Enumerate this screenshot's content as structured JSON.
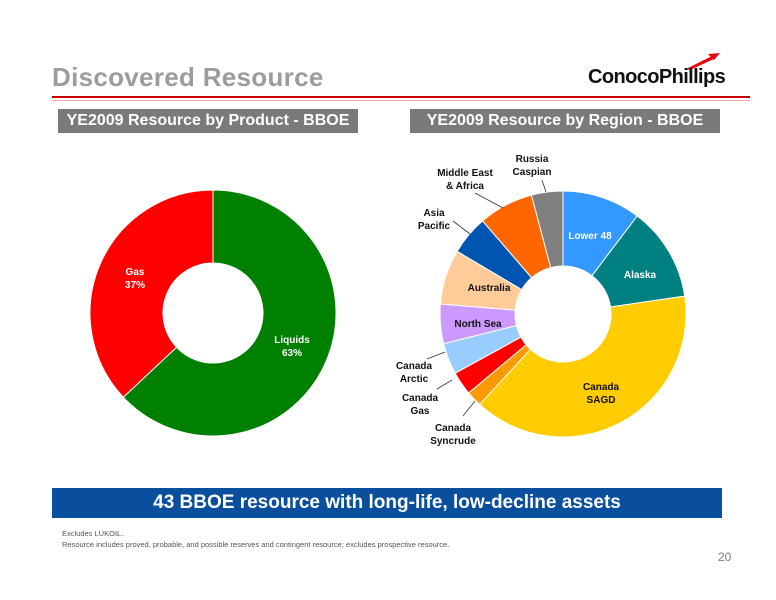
{
  "slide": {
    "title": "Discovered Resource",
    "logo_text": "ConocoPhillips",
    "banner": "43 BBOE resource with long-life, low-decline assets",
    "footnotes": [
      "Excludes LUKOIL.",
      "Resource includes proved, probable, and possible reserves and contingent resource; excludes prospective resource."
    ],
    "page_number": "20",
    "colors": {
      "title": "#9c9c9c",
      "rule": "#c80000",
      "banner": "#0a4f9e",
      "header_bar": "#7a7a7a"
    }
  },
  "chart_data": [
    {
      "type": "pie",
      "donut": true,
      "title": "YE2009 Resource by Product - BBOE",
      "slices": [
        {
          "label": "Liquids",
          "value_label": "63%",
          "value": 63,
          "color": "#008000"
        },
        {
          "label": "Gas",
          "value_label": "37%",
          "value": 37,
          "color": "#ff0000"
        }
      ],
      "legend": "none"
    },
    {
      "type": "pie",
      "donut": true,
      "title": "YE2009 Resource by Region - BBOE",
      "slices": [
        {
          "label": "Lower 48",
          "value": 10,
          "color": "#3399ff"
        },
        {
          "label": "Alaska",
          "value": 12,
          "color": "#008080"
        },
        {
          "label": "Canada SAGD",
          "value": 38,
          "color": "#ffcc00"
        },
        {
          "label": "Canada Syncrude",
          "value": 2,
          "color": "#ff9900"
        },
        {
          "label": "Canada Gas",
          "value": 3,
          "color": "#ff0000"
        },
        {
          "label": "Canada Arctic",
          "value": 4,
          "color": "#99ccff"
        },
        {
          "label": "North Sea",
          "value": 5,
          "color": "#cc99ff"
        },
        {
          "label": "Australia",
          "value": 7,
          "color": "#ffcc99"
        },
        {
          "label": "Asia Pacific",
          "value": 5,
          "color": "#0055b3"
        },
        {
          "label": "Middle East & Africa",
          "value": 7,
          "color": "#ff6600"
        },
        {
          "label": "Russia Caspian",
          "value": 4,
          "color": "#7f7f7f"
        }
      ],
      "legend": "none"
    }
  ]
}
